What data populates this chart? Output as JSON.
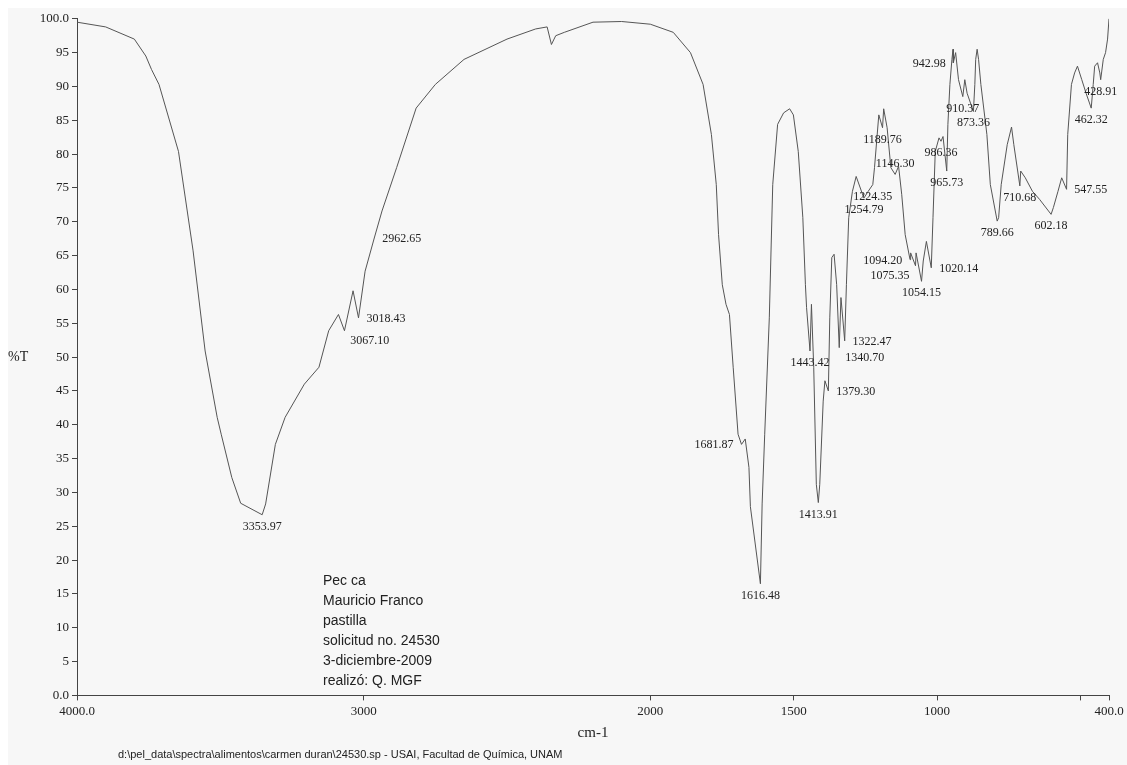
{
  "chart_data": {
    "type": "line",
    "xlabel": "cm-1",
    "ylabel": "%T",
    "xlim": [
      4000,
      400
    ],
    "xticks": [
      {
        "value": 4000,
        "label": "4000.0"
      },
      3000,
      2000,
      1500,
      1000,
      {
        "value": 500,
        "label": null
      },
      {
        "value": 400,
        "label": "400.0"
      }
    ],
    "ylim": [
      0,
      100
    ],
    "yticks": [
      {
        "value": 0,
        "label": "0.0"
      },
      5,
      10,
      15,
      20,
      25,
      30,
      35,
      40,
      45,
      50,
      55,
      60,
      65,
      70,
      75,
      80,
      85,
      90,
      95,
      {
        "value": 100,
        "label": "100.0"
      }
    ],
    "color": "#555555",
    "x": [
      4000,
      3900,
      3800,
      3760,
      3740,
      3714,
      3646,
      3595,
      3553,
      3511,
      3497,
      3460,
      3429,
      3354,
      3342,
      3308,
      3274,
      3207,
      3156,
      3122,
      3088,
      3067,
      3037,
      3018,
      2995,
      2963,
      2936,
      2885,
      2817,
      2750,
      2650,
      2500,
      2400,
      2360,
      2345,
      2330,
      2300,
      2200,
      2100,
      2000,
      1920,
      1860,
      1816,
      1787,
      1770,
      1762,
      1749,
      1736,
      1724,
      1711,
      1694,
      1682,
      1669,
      1656,
      1651,
      1616,
      1610,
      1601,
      1585,
      1573,
      1556,
      1535,
      1514,
      1501,
      1484,
      1468,
      1459,
      1455,
      1443,
      1438,
      1430,
      1421,
      1414,
      1409,
      1397,
      1391,
      1379,
      1374,
      1367,
      1359,
      1350,
      1341,
      1335,
      1322,
      1316,
      1308,
      1295,
      1282,
      1255,
      1240,
      1224,
      1218,
      1203,
      1190,
      1186,
      1174,
      1161,
      1146,
      1134,
      1123,
      1111,
      1094,
      1092,
      1075,
      1073,
      1054,
      1048,
      1037,
      1020,
      1014,
      1006,
      993,
      986,
      979,
      966,
      962,
      955,
      948,
      944,
      943,
      935,
      925,
      910,
      903,
      895,
      873,
      868,
      865,
      860,
      855,
      847,
      826,
      814,
      790,
      785,
      776,
      755,
      740,
      732,
      711,
      708,
      692,
      667,
      642,
      602,
      594,
      578,
      565,
      548,
      544,
      531,
      520,
      510,
      495,
      480,
      462,
      455,
      450,
      440,
      432,
      429,
      420,
      412,
      405,
      400
    ],
    "values": [
      99.5,
      98.8,
      97,
      94.5,
      92.5,
      90.3,
      80.4,
      65.7,
      50.9,
      41.1,
      38.6,
      32.2,
      28.4,
      26.7,
      28.3,
      37.1,
      41.1,
      46.0,
      48.5,
      53.9,
      56.3,
      53.9,
      59.8,
      55.8,
      62.7,
      67.6,
      71.6,
      78.0,
      86.8,
      90.3,
      94,
      97,
      98.5,
      98.8,
      96.2,
      97.5,
      98,
      99.5,
      99.6,
      99.2,
      98,
      95,
      90.3,
      82.9,
      75.5,
      68.1,
      60.7,
      57.8,
      56.3,
      48.5,
      38.6,
      37.1,
      37.9,
      33.7,
      27.9,
      16.5,
      28.3,
      38.6,
      55.8,
      75.5,
      84.4,
      86.1,
      86.7,
      85.8,
      80.4,
      70.6,
      60.7,
      57.3,
      50.9,
      57.8,
      48.5,
      31.2,
      28.5,
      31.2,
      43.5,
      46.5,
      45.0,
      55.8,
      64.7,
      65.2,
      60.7,
      51.4,
      58.8,
      52.4,
      60.7,
      70.6,
      74.5,
      76.7,
      73.5,
      74.5,
      75.5,
      78.0,
      85.8,
      83.9,
      86.7,
      83.9,
      78.0,
      77.0,
      78.2,
      74.0,
      68.1,
      64.4,
      65.4,
      63.5,
      65.4,
      61.2,
      64.2,
      67.1,
      63.2,
      70.6,
      80.4,
      82.4,
      81.9,
      82.6,
      77.5,
      84.4,
      90.3,
      94,
      95.5,
      93.5,
      95,
      91,
      88.5,
      91,
      89,
      86.3,
      90.3,
      94,
      95.5,
      94,
      90.3,
      82.9,
      75.5,
      70.1,
      70.6,
      75.5,
      81.4,
      84.0,
      81.4,
      75.3,
      77.5,
      76.5,
      74.5,
      73.3,
      71.1,
      72.1,
      74.5,
      76.5,
      74.8,
      82.9,
      90.3,
      92,
      93,
      91,
      89,
      86.8,
      90.3,
      93,
      93.5,
      92,
      91,
      94,
      95,
      97,
      100
    ],
    "annotations": [
      {
        "text": "2962.65",
        "x": 2963,
        "y": 67.6
      },
      {
        "text": "3018.43",
        "x": 3018,
        "y": 55.8
      },
      {
        "text": "3067.10",
        "x": 3067,
        "y": 53.9
      },
      {
        "text": "3353.97",
        "x": 3354,
        "y": 26.7
      },
      {
        "text": "1681.87",
        "x": 1682,
        "y": 37.1
      },
      {
        "text": "1616.48",
        "x": 1616,
        "y": 16.5
      },
      {
        "text": "1443.42",
        "x": 1443,
        "y": 50.9
      },
      {
        "text": "1413.91",
        "x": 1414,
        "y": 28.5
      },
      {
        "text": "1379.30",
        "x": 1379,
        "y": 45.0
      },
      {
        "text": "1340.70",
        "x": 1341,
        "y": 51.4
      },
      {
        "text": "1322.47",
        "x": 1322,
        "y": 52.4
      },
      {
        "text": "1254.79",
        "x": 1255,
        "y": 73.5
      },
      {
        "text": "1224.35",
        "x": 1224,
        "y": 75.5
      },
      {
        "text": "1189.76",
        "x": 1190,
        "y": 83.9
      },
      {
        "text": "1146.30",
        "x": 1146,
        "y": 77.0
      },
      {
        "text": "1094.20",
        "x": 1094,
        "y": 64.4
      },
      {
        "text": "1075.35",
        "x": 1075,
        "y": 63.5
      },
      {
        "text": "1054.15",
        "x": 1054,
        "y": 61.2
      },
      {
        "text": "1020.14",
        "x": 1020,
        "y": 63.2
      },
      {
        "text": "986.36",
        "x": 986,
        "y": 81.9
      },
      {
        "text": "965.73",
        "x": 966,
        "y": 77.5
      },
      {
        "text": "942.98",
        "x": 943,
        "y": 93.5
      },
      {
        "text": "910.37",
        "x": 910,
        "y": 88.5
      },
      {
        "text": "873.36",
        "x": 873,
        "y": 86.3
      },
      {
        "text": "789.66",
        "x": 790,
        "y": 70.1
      },
      {
        "text": "710.68",
        "x": 711,
        "y": 75.3
      },
      {
        "text": "602.18",
        "x": 602,
        "y": 71.1
      },
      {
        "text": "547.55",
        "x": 548,
        "y": 74.8
      },
      {
        "text": "462.32",
        "x": 462,
        "y": 86.8
      },
      {
        "text": "428.91",
        "x": 429,
        "y": 91
      },
      "Pec ca",
      "Mauricio Franco",
      "pastilla",
      "solicitud no. 24530",
      "3-diciembre-2009",
      "realizó: Q. MGF",
      "d:\\pel_data\\spectra\\alimentos\\carmen duran\\24530.sp - USAI, Facultad de Química, UNAM"
    ]
  }
}
